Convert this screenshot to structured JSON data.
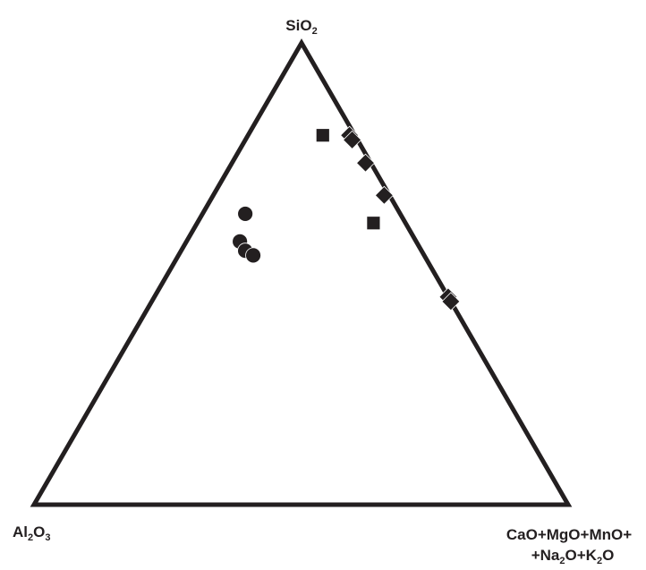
{
  "chart_data": {
    "type": "scatter",
    "subtype": "ternary",
    "title": "",
    "vertices": {
      "top": {
        "parts": [
          "SiO",
          {
            "sub": "2"
          }
        ]
      },
      "left": {
        "parts": [
          "Al",
          {
            "sub": "2"
          },
          "O",
          {
            "sub": "3"
          }
        ]
      },
      "right": {
        "line1": [
          "CaO+MgO+MnO+"
        ],
        "line2": [
          "+Na",
          {
            "sub": "2"
          },
          "O+K",
          {
            "sub": "2"
          },
          "O"
        ]
      }
    },
    "components": [
      "SiO2",
      "Al2O3",
      "CaO+MgO+MnO+Na2O+K2O"
    ],
    "unit": "fraction",
    "series": [
      {
        "marker": "circle",
        "points": [
          {
            "SiO2": 0.63,
            "Al2O3": 0.29,
            "Others": 0.08
          },
          {
            "SiO2": 0.57,
            "Al2O3": 0.33,
            "Others": 0.1
          },
          {
            "SiO2": 0.55,
            "Al2O3": 0.33,
            "Others": 0.12
          },
          {
            "SiO2": 0.54,
            "Al2O3": 0.32,
            "Others": 0.14
          }
        ]
      },
      {
        "marker": "square",
        "points": [
          {
            "SiO2": 0.8,
            "Al2O3": 0.06,
            "Others": 0.14
          },
          {
            "SiO2": 0.61,
            "Al2O3": 0.06,
            "Others": 0.33
          }
        ]
      },
      {
        "marker": "diamond",
        "points": [
          {
            "SiO2": 0.8,
            "Al2O3": 0.01,
            "Others": 0.19
          },
          {
            "SiO2": 0.79,
            "Al2O3": 0.01,
            "Others": 0.2
          },
          {
            "SiO2": 0.74,
            "Al2O3": 0.01,
            "Others": 0.25
          },
          {
            "SiO2": 0.67,
            "Al2O3": 0.01,
            "Others": 0.32
          },
          {
            "SiO2": 0.45,
            "Al2O3": 0.0,
            "Others": 0.55
          },
          {
            "SiO2": 0.44,
            "Al2O3": 0.0,
            "Others": 0.56
          }
        ]
      }
    ],
    "grid": false,
    "legend": "none",
    "colors": {
      "ink": "#231f20",
      "background": "#ffffff"
    }
  }
}
